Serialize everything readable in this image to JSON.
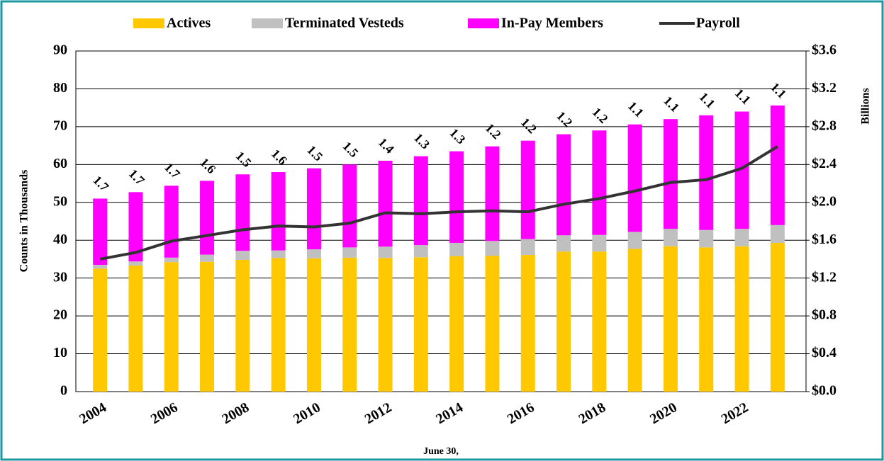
{
  "chart_data": {
    "type": "bar",
    "stacked": true,
    "x_label": "June 30,",
    "y_label": "Counts in Thousands",
    "y2_label": "Billions",
    "categories": [
      "2004",
      null,
      "2006",
      null,
      "2008",
      null,
      "2010",
      null,
      "2012",
      null,
      "2014",
      null,
      "2016",
      null,
      "2018",
      null,
      "2020",
      null,
      "2022",
      null
    ],
    "series": [
      {
        "name": "Actives",
        "color": "#ffc800",
        "type": "bar",
        "values": [
          32.5,
          33.3,
          34.2,
          34.3,
          34.8,
          35.3,
          35.2,
          35.4,
          35.3,
          35.5,
          35.8,
          35.9,
          36.1,
          37.0,
          37.0,
          37.7,
          38.4,
          38.1,
          38.4,
          39.3
        ]
      },
      {
        "name": "Terminated Vesteds",
        "color": "#c0c0c0",
        "type": "bar",
        "values": [
          1.0,
          1.1,
          1.2,
          1.9,
          2.4,
          2.0,
          2.4,
          2.7,
          3.0,
          3.2,
          3.5,
          3.9,
          4.2,
          4.3,
          4.4,
          4.5,
          4.6,
          4.6,
          4.6,
          4.7
        ]
      },
      {
        "name": "In-Pay Members",
        "color": "#ff00ff",
        "type": "bar",
        "values": [
          17.5,
          18.3,
          19.0,
          19.5,
          20.2,
          20.7,
          21.4,
          21.9,
          22.7,
          23.5,
          24.2,
          25.0,
          26.0,
          26.7,
          27.6,
          28.4,
          29.0,
          30.3,
          31.0,
          31.6
        ]
      },
      {
        "name": "Payroll",
        "color": "#333333",
        "type": "line",
        "axis": "y2",
        "values": [
          1.4,
          1.47,
          1.59,
          1.65,
          1.71,
          1.75,
          1.74,
          1.78,
          1.89,
          1.88,
          1.9,
          1.91,
          1.9,
          1.98,
          2.04,
          2.12,
          2.21,
          2.24,
          2.36,
          2.59
        ]
      }
    ],
    "data_labels": [
      1.7,
      1.7,
      1.7,
      1.6,
      1.5,
      1.6,
      1.5,
      1.5,
      1.4,
      1.3,
      1.3,
      1.2,
      1.2,
      1.2,
      1.2,
      1.1,
      1.1,
      1.1,
      1.1,
      1.1
    ],
    "ylim": [
      0,
      90
    ],
    "yticks": [
      0,
      10,
      20,
      30,
      40,
      50,
      60,
      70,
      80,
      90
    ],
    "y2lim": [
      0,
      3.6
    ],
    "y2ticks": [
      {
        "value": 0,
        "label": "$0.0"
      },
      {
        "value": 0.4,
        "label": "$0.4"
      },
      {
        "value": 0.8,
        "label": "$0.8"
      },
      {
        "value": 1.2,
        "label": "$1.2"
      },
      {
        "value": 1.6,
        "label": "$1.6"
      },
      {
        "value": 2.0,
        "label": "$2.0"
      },
      {
        "value": 2.4,
        "label": "$2.4"
      },
      {
        "value": 2.8,
        "label": "$2.8"
      },
      {
        "value": 3.2,
        "label": "$3.2"
      },
      {
        "value": 3.6,
        "label": "$3.6"
      }
    ],
    "grid": true,
    "legend": "top"
  }
}
